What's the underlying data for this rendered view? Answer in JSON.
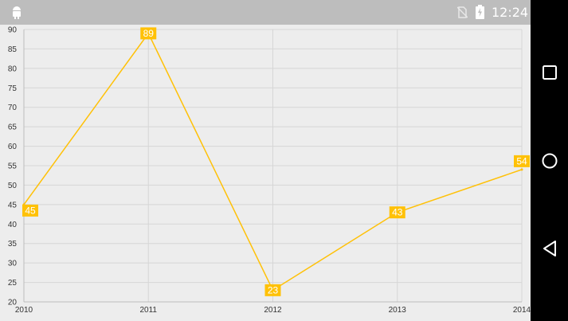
{
  "status_bar": {
    "time": "12:24",
    "icons": [
      "android-icon",
      "no-sim-icon",
      "battery-icon"
    ],
    "background": "#bdbdbd"
  },
  "nav_bar": {
    "buttons": [
      "recents-square-icon",
      "home-circle-icon",
      "back-triangle-icon"
    ]
  },
  "chart_data": {
    "type": "line",
    "x": [
      "2010",
      "2011",
      "2012",
      "2013",
      "2014"
    ],
    "series": [
      {
        "values": [
          45,
          89,
          23,
          43,
          54
        ],
        "color": "#ffc107"
      }
    ],
    "data_labels": [
      "45",
      "89",
      "23",
      "43",
      "54"
    ],
    "y_ticks": [
      "20",
      "25",
      "30",
      "35",
      "40",
      "45",
      "50",
      "55",
      "60",
      "65",
      "70",
      "75",
      "80",
      "85",
      "90"
    ],
    "ylim": [
      20,
      90
    ],
    "grid": true,
    "title": "",
    "xlabel": "",
    "ylabel": "",
    "colors": {
      "background": "#ededed",
      "grid": "#d6d6d6",
      "line": "#ffc107",
      "label_fill": "#ffc107",
      "label_text": "#ffffff",
      "axis_text": "#333333"
    }
  }
}
